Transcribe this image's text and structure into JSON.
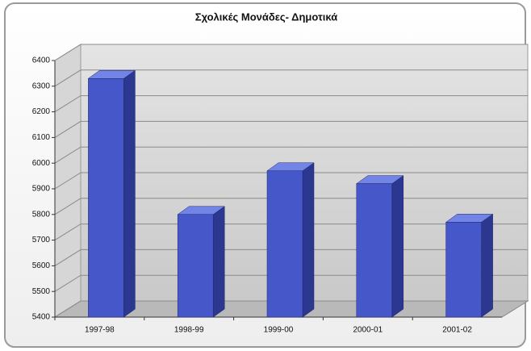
{
  "chart_data": {
    "type": "bar3d",
    "title": "Σχολικές Μονάδες- Δημοτικά",
    "categories": [
      "1997-98",
      "1998-99",
      "1999-00",
      "2000-01",
      "2001-02"
    ],
    "values": [
      6330,
      5800,
      5970,
      5920,
      5770
    ],
    "color": "#4657c9",
    "ylim": [
      5400,
      6400
    ],
    "yticks": [
      5400,
      5500,
      5600,
      5700,
      5800,
      5900,
      6000,
      6100,
      6200,
      6300,
      6400
    ],
    "grid": true
  }
}
